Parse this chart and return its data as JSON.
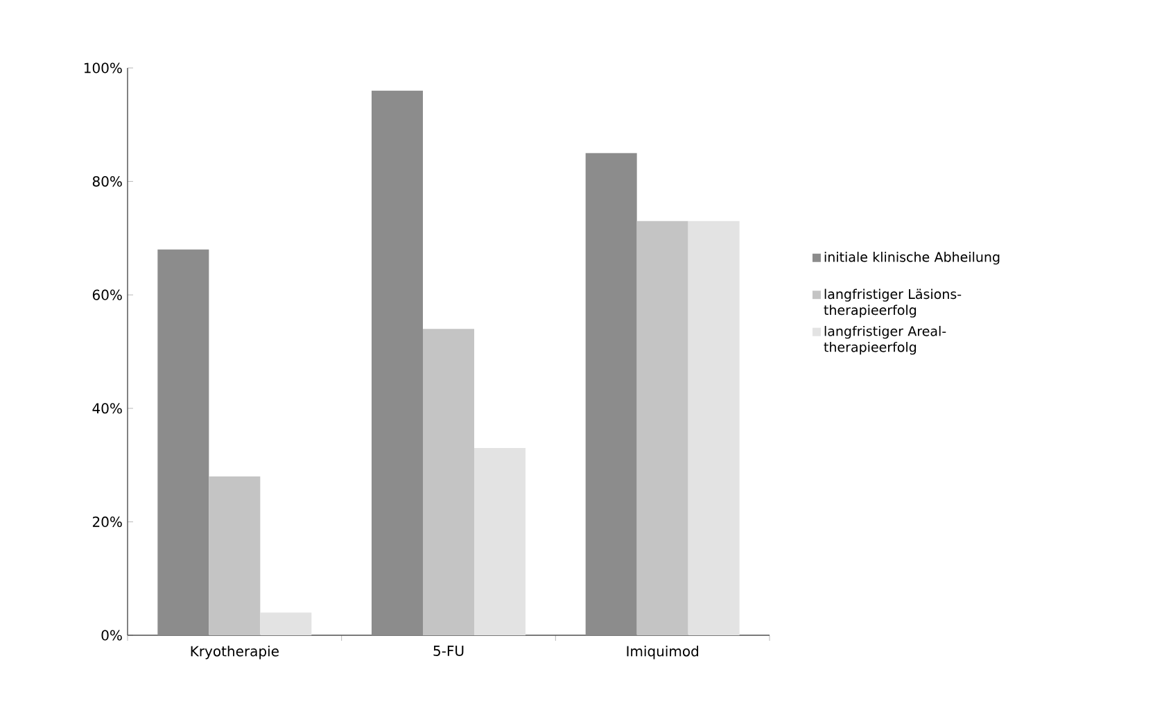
{
  "chart_data": {
    "type": "bar",
    "categories": [
      "Kryotherapie",
      "5-FU",
      "Imiquimod"
    ],
    "series": [
      {
        "name": "initiale klinische Abheilung",
        "color": "#8c8c8c",
        "values": [
          68,
          96,
          85
        ]
      },
      {
        "name": "langfristiger Läsions-therapieerfolg",
        "color": "#c4c4c4",
        "values": [
          28,
          54,
          73
        ]
      },
      {
        "name": "langfristiger Areal-therapieerfolg",
        "color": "#e3e3e3",
        "values": [
          4,
          33,
          73
        ]
      }
    ],
    "ylim": [
      0,
      100
    ],
    "yticks": [
      {
        "value": 0,
        "label": "0%"
      },
      {
        "value": 20,
        "label": "20%"
      },
      {
        "value": 40,
        "label": "40%"
      },
      {
        "value": 60,
        "label": "60%"
      },
      {
        "value": 80,
        "label": "80%"
      },
      {
        "value": 100,
        "label": "100%"
      }
    ],
    "grid": false,
    "legend": "right"
  }
}
